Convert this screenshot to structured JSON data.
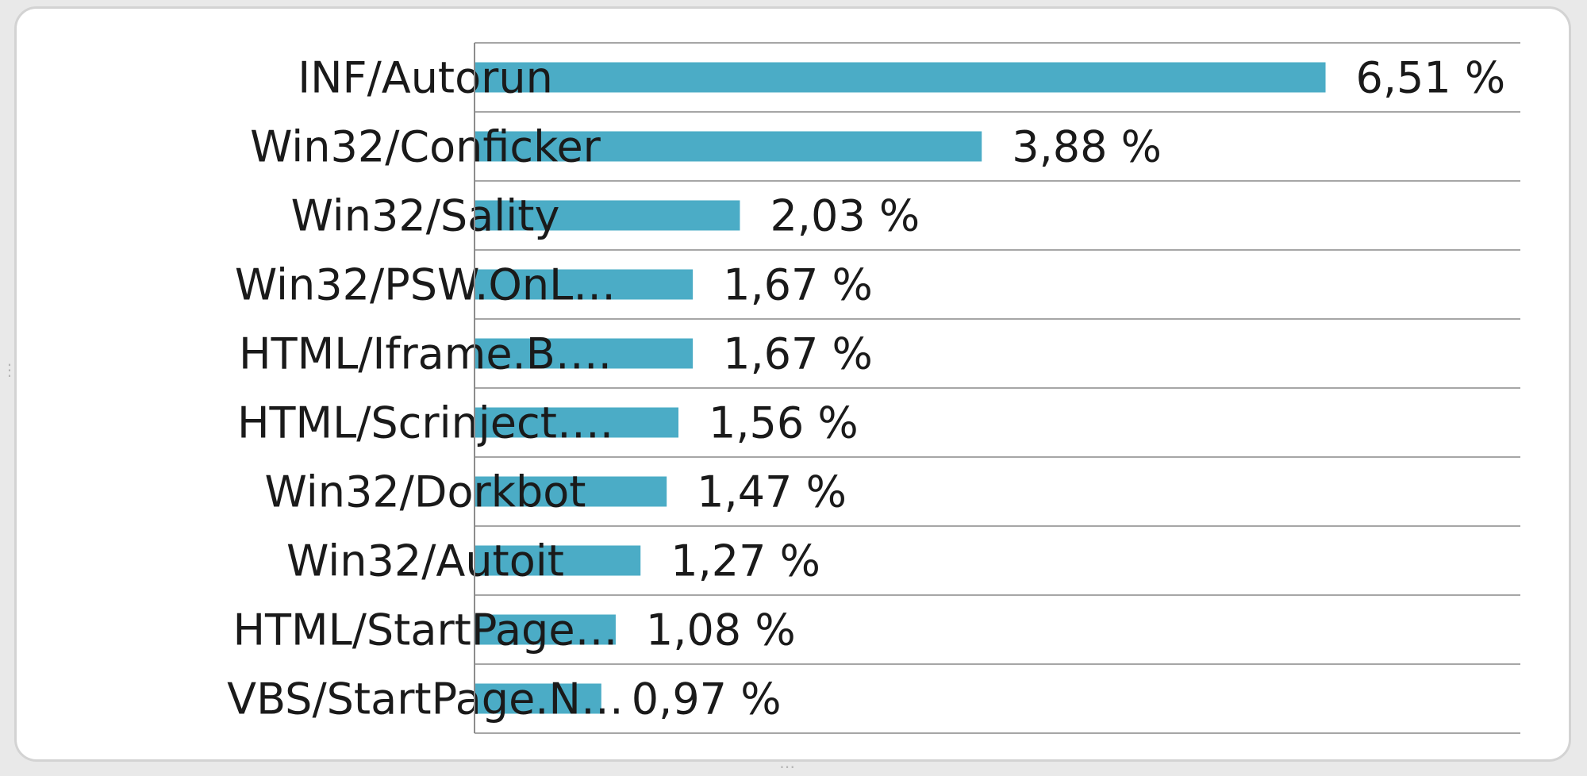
{
  "chart_data": {
    "type": "bar",
    "orientation": "horizontal",
    "categories": [
      "INF/Autorun",
      "Win32/Conficker",
      "Win32/Sality",
      "Win32/PSW.OnL…",
      "HTML/Iframe.B….",
      "HTML/Scrinject….",
      "Win32/Dorkbot",
      "Win32/Autoit",
      "HTML/StartPage…",
      "VBS/StartPage.N…"
    ],
    "values": [
      6.51,
      3.88,
      2.03,
      1.67,
      1.67,
      1.56,
      1.47,
      1.27,
      1.08,
      0.97
    ],
    "value_labels": [
      "6,51 %",
      "3,88 %",
      "2,03 %",
      "1,67 %",
      "1,67 %",
      "1,56 %",
      "1,47 %",
      "1,27 %",
      "1,08 %",
      "0,97 %"
    ],
    "xlim": [
      0,
      8
    ],
    "grid": true,
    "bar_color": "#4bacc6",
    "title": "",
    "xlabel": "",
    "ylabel": ""
  }
}
